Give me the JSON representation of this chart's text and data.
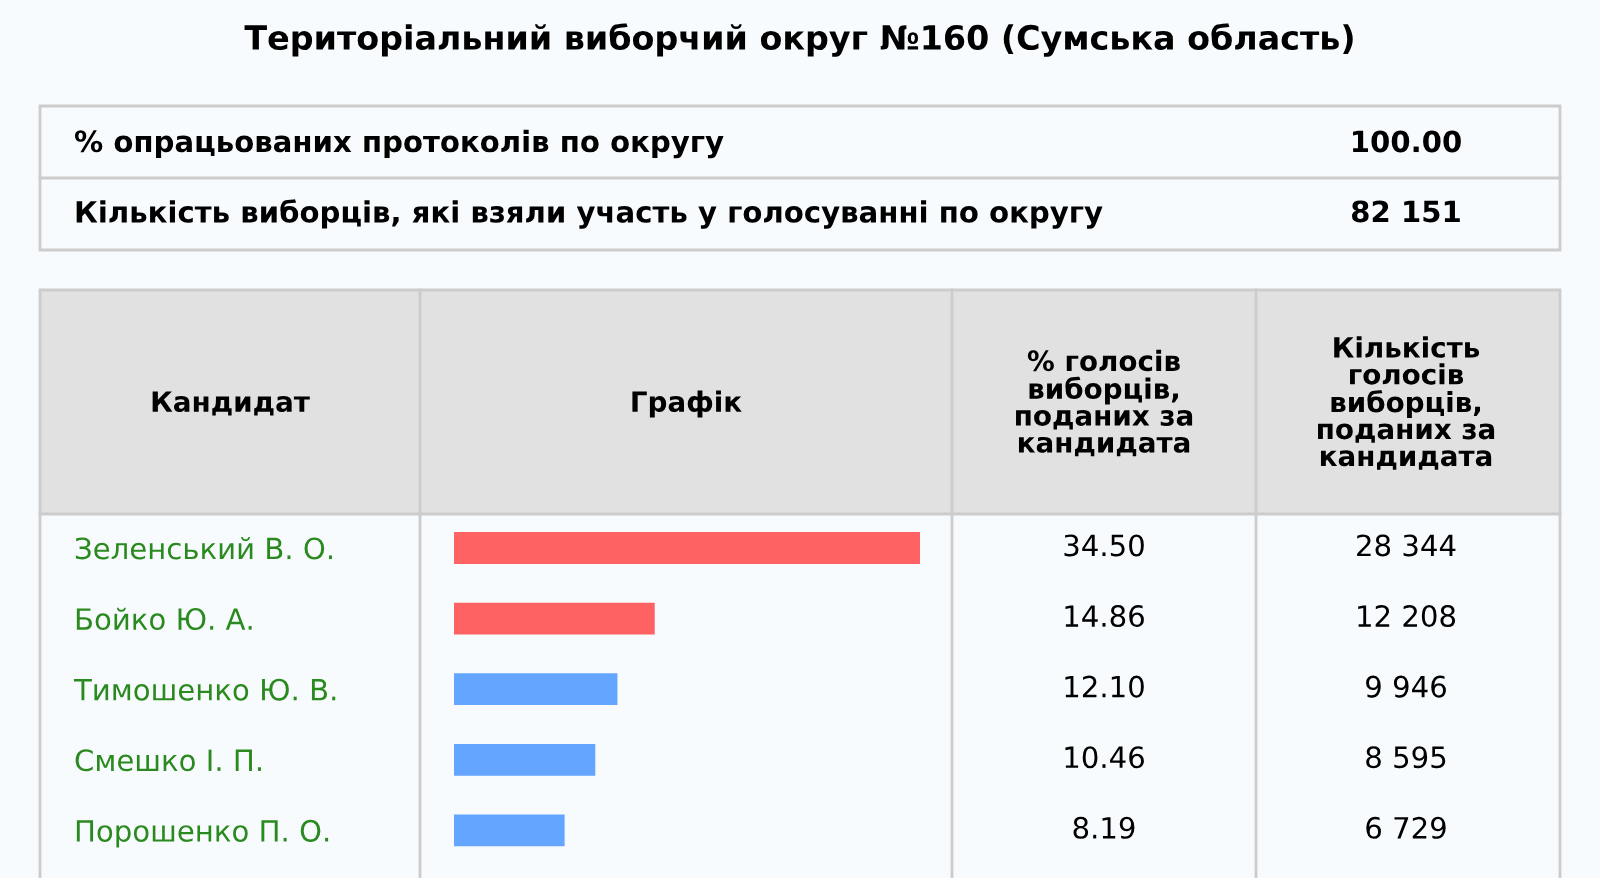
{
  "chart_data": {
    "type": "bar",
    "orientation": "horizontal",
    "title": "Територіальний виборчий округ №160 (Сумська область)",
    "ylabel": "Кандидат",
    "xlabel": "Графік",
    "categories": [
      "Зеленський В. О.",
      "Бойко Ю. А.",
      "Тимошенко Ю. В.",
      "Смешко І. П.",
      "Порошенко П. О."
    ],
    "values": [
      34.5,
      14.86,
      12.1,
      10.46,
      8.19
    ],
    "colors": [
      "#ff6262",
      "#ff6262",
      "#64a5ff",
      "#64a5ff",
      "#64a5ff"
    ],
    "value_labels": [
      "34.50",
      "14.86",
      "12.10",
      "10.46",
      "8.19"
    ],
    "annotations": [
      "% опрацьованих протоколів по округу",
      "100.00",
      "Кількість виборців, які взяли участь у голосуванні по округу",
      "82 151",
      "% голосів виборців, поданих за кандидата",
      "Кількість голосів виборців, поданих за кандидата",
      "28 344",
      "12 208",
      "9 946",
      "8 595",
      "6 729"
    ]
  }
}
